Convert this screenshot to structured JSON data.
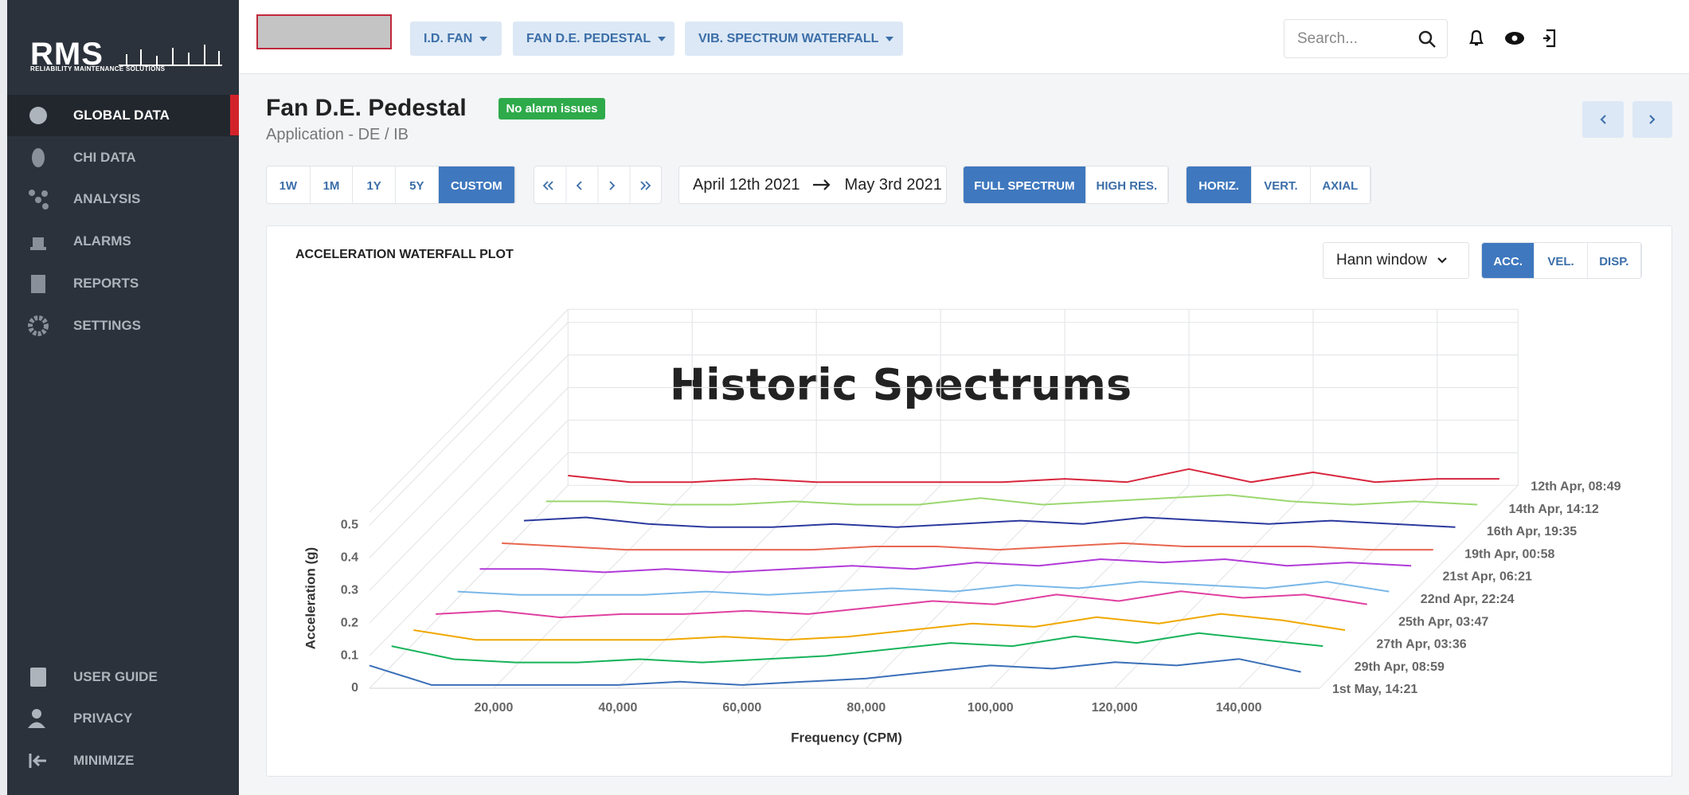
{
  "sidebar": {
    "logo": "RMS",
    "logo_tagline": "RELIABILITY MAINTENANCE SOLUTIONS",
    "nav": [
      "GLOBAL DATA",
      "CHI DATA",
      "ANALYSIS",
      "ALARMS",
      "REPORTS",
      "SETTINGS"
    ],
    "bottom_nav": [
      "USER GUIDE",
      "PRIVACY",
      "MINIMIZE"
    ]
  },
  "topbar": {
    "breadcrumbs": [
      "I.D. FAN",
      "FAN D.E. PEDESTAL",
      "VIB. SPECTRUM WATERFALL"
    ],
    "search_placeholder": "Search..."
  },
  "header": {
    "title": "Fan D.E. Pedestal",
    "badge": "No alarm issues",
    "subtitle": "Application - DE / IB"
  },
  "toolbar": {
    "ranges": [
      "1W",
      "1M",
      "1Y",
      "5Y",
      "CUSTOM"
    ],
    "start_date": "April 12th 2021",
    "end_date": "May 3rd 2021",
    "spectrum_modes": [
      "FULL SPECTRUM",
      "HIGH RES."
    ],
    "directions": [
      "HORIZ.",
      "VERT.",
      "AXIAL"
    ]
  },
  "card": {
    "title": "ACCELERATION WATERFALL PLOT",
    "window": "Hann window",
    "units": [
      "ACC.",
      "VEL.",
      "DISP."
    ]
  },
  "chart_data": {
    "type": "waterfall",
    "title": "Historic Spectrums",
    "x_label": "Frequency (CPM)",
    "y_label": "Acceleration (g)",
    "xlim": [
      0,
      153000
    ],
    "ylim": [
      0,
      0.54
    ],
    "xticks": [
      {
        "value": 20000,
        "label": "20,000"
      },
      {
        "value": 40000,
        "label": "40,000"
      },
      {
        "value": 60000,
        "label": "60,000"
      },
      {
        "value": 80000,
        "label": "80,000"
      },
      {
        "value": 100000,
        "label": "100,000"
      },
      {
        "value": 120000,
        "label": "120,000"
      },
      {
        "value": 140000,
        "label": "140,000"
      }
    ],
    "yticks": [
      0,
      0.1,
      0.2,
      0.3,
      0.4,
      0.5
    ],
    "grid": true,
    "x": [
      0,
      10000,
      20000,
      30000,
      40000,
      50000,
      60000,
      70000,
      80000,
      90000,
      100000,
      110000,
      120000,
      130000,
      140000,
      150000
    ],
    "series": [
      {
        "name": "12th Apr, 08:49",
        "color": "#d7263d",
        "values": [
          0.03,
          0.01,
          0.01,
          0.02,
          0.01,
          0.01,
          0.01,
          0.01,
          0.02,
          0.01,
          0.05,
          0.01,
          0.04,
          0.01,
          0.02,
          0.02
        ]
      },
      {
        "name": "14th Apr, 14:12",
        "color": "#9bd770",
        "values": [
          0.02,
          0.02,
          0.01,
          0.01,
          0.02,
          0.01,
          0.01,
          0.03,
          0.01,
          0.02,
          0.03,
          0.04,
          0.02,
          0.01,
          0.02,
          0.01
        ]
      },
      {
        "name": "16th Apr, 19:35",
        "color": "#2b3a9e",
        "values": [
          0.03,
          0.04,
          0.02,
          0.01,
          0.01,
          0.02,
          0.01,
          0.02,
          0.03,
          0.02,
          0.04,
          0.03,
          0.02,
          0.03,
          0.02,
          0.01
        ]
      },
      {
        "name": "19th Apr, 00:58",
        "color": "#e8664f",
        "values": [
          0.03,
          0.02,
          0.01,
          0.01,
          0.01,
          0.01,
          0.02,
          0.02,
          0.01,
          0.02,
          0.03,
          0.02,
          0.02,
          0.02,
          0.01,
          0.01
        ]
      },
      {
        "name": "21st Apr, 06:21",
        "color": "#b23ad8",
        "values": [
          0.02,
          0.02,
          0.01,
          0.02,
          0.01,
          0.02,
          0.03,
          0.02,
          0.04,
          0.03,
          0.05,
          0.04,
          0.05,
          0.03,
          0.04,
          0.03
        ]
      },
      {
        "name": "22nd Apr, 22:24",
        "color": "#7ab8e8",
        "values": [
          0.02,
          0.01,
          0.01,
          0.01,
          0.02,
          0.01,
          0.02,
          0.03,
          0.02,
          0.04,
          0.03,
          0.05,
          0.04,
          0.03,
          0.05,
          0.02
        ]
      },
      {
        "name": "25th Apr, 03:47",
        "color": "#e040a0",
        "values": [
          0.02,
          0.03,
          0.01,
          0.02,
          0.02,
          0.03,
          0.02,
          0.04,
          0.06,
          0.05,
          0.08,
          0.06,
          0.09,
          0.07,
          0.08,
          0.05
        ]
      },
      {
        "name": "27th Apr, 03:36",
        "color": "#f0a800",
        "values": [
          0.04,
          0.01,
          0.01,
          0.01,
          0.01,
          0.02,
          0.01,
          0.02,
          0.04,
          0.06,
          0.05,
          0.08,
          0.06,
          0.09,
          0.07,
          0.04
        ]
      },
      {
        "name": "29th Apr, 08:59",
        "color": "#16b35a",
        "values": [
          0.06,
          0.02,
          0.01,
          0.01,
          0.02,
          0.01,
          0.02,
          0.03,
          0.05,
          0.07,
          0.06,
          0.09,
          0.07,
          0.1,
          0.08,
          0.06
        ]
      },
      {
        "name": "1st May, 14:21",
        "color": "#3a6fb8",
        "values": [
          0.07,
          0.01,
          0.01,
          0.01,
          0.01,
          0.02,
          0.01,
          0.02,
          0.03,
          0.05,
          0.07,
          0.06,
          0.08,
          0.07,
          0.09,
          0.05
        ]
      }
    ]
  }
}
